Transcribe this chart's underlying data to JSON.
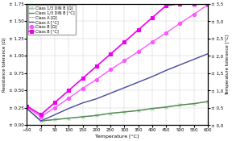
{
  "xlabel": "Temperature [°C]",
  "ylabel_left": "Resistance tolerance [Ω]",
  "ylabel_right": "Temperature tolerance [°C]",
  "xlim": [
    -50,
    600
  ],
  "ylim_left": [
    0,
    1.75
  ],
  "ylim_right": [
    0.0,
    3.5
  ],
  "x_ticks": [
    -50,
    0,
    50,
    100,
    150,
    200,
    250,
    300,
    350,
    400,
    450,
    500,
    550,
    600
  ],
  "yticks_left": [
    0.0,
    0.25,
    0.5,
    0.75,
    1.0,
    1.25,
    1.5,
    1.75
  ],
  "ytick_labels_left": [
    "± 0.00",
    "± 0.25",
    "± 0.50",
    "± 0.75",
    "± 1.00",
    "± 1.25",
    "± 1.50",
    "± 1.75"
  ],
  "yticks_right": [
    0.0,
    0.5,
    1.0,
    1.5,
    2.0,
    2.5,
    3.0,
    3.5
  ],
  "ytick_labels_right": [
    "± 0,0",
    "± 0,5",
    "± 1,0",
    "± 1,5",
    "± 2,0",
    "± 2,5",
    "± 3,0",
    "± 3,5"
  ],
  "series": [
    {
      "label": "Class 1/3 DIN B [Ω]",
      "axis": "left",
      "x": [
        -50,
        0,
        50,
        100,
        150,
        200,
        250,
        300,
        350,
        400,
        450,
        500,
        550,
        600
      ],
      "y": [
        0.24,
        0.06,
        0.08,
        0.1,
        0.12,
        0.14,
        0.17,
        0.19,
        0.21,
        0.24,
        0.26,
        0.29,
        0.31,
        0.34
      ],
      "color": "#aacfaa",
      "linestyle": "-",
      "marker": "x",
      "markersize": 3.0,
      "linewidth": 0.8
    },
    {
      "label": "Class 1/3 DIN B [°C]",
      "axis": "left",
      "x": [
        -50,
        0,
        50,
        100,
        150,
        200,
        250,
        300,
        350,
        400,
        450,
        500,
        550,
        600
      ],
      "y": [
        0.24,
        0.06,
        0.08,
        0.1,
        0.12,
        0.14,
        0.17,
        0.19,
        0.21,
        0.24,
        0.26,
        0.29,
        0.31,
        0.34
      ],
      "color": "#508850",
      "linestyle": "-",
      "marker": null,
      "markersize": 0,
      "linewidth": 1.0
    },
    {
      "label": "Class A [Ω]",
      "axis": "left",
      "x": [
        -50,
        0,
        50,
        100,
        150,
        200,
        250,
        300,
        350,
        400,
        450,
        500,
        550,
        600
      ],
      "y": [
        0.24,
        0.06,
        0.15,
        0.24,
        0.32,
        0.38,
        0.46,
        0.54,
        0.62,
        0.7,
        0.79,
        0.87,
        0.95,
        1.03
      ],
      "color": "#c0c0d8",
      "linestyle": "-",
      "marker": null,
      "markersize": 0,
      "linewidth": 0.8
    },
    {
      "label": "Class A [°C]",
      "axis": "left",
      "x": [
        -50,
        0,
        50,
        100,
        150,
        200,
        250,
        300,
        350,
        400,
        450,
        500,
        550,
        600
      ],
      "y": [
        0.24,
        0.06,
        0.15,
        0.24,
        0.32,
        0.38,
        0.46,
        0.54,
        0.62,
        0.7,
        0.79,
        0.87,
        0.95,
        1.03
      ],
      "color": "#5050a0",
      "linestyle": "-",
      "marker": null,
      "markersize": 0,
      "linewidth": 1.0
    },
    {
      "label": "Class B [Ω]",
      "axis": "left",
      "x": [
        -50,
        0,
        50,
        100,
        150,
        200,
        250,
        300,
        350,
        400,
        450,
        500,
        550,
        600
      ],
      "y": [
        0.26,
        0.12,
        0.25,
        0.39,
        0.53,
        0.66,
        0.8,
        0.93,
        1.06,
        1.2,
        1.33,
        1.47,
        1.6,
        1.74
      ],
      "color": "#ff55ff",
      "linestyle": "-",
      "marker": "o",
      "markersize": 3.0,
      "linewidth": 1.0
    },
    {
      "label": "Class B [°C]",
      "axis": "right",
      "x": [
        -50,
        0,
        50,
        100,
        150,
        200,
        250,
        300,
        350,
        400,
        450,
        500,
        550,
        600
      ],
      "y": [
        0.55,
        0.3,
        0.65,
        1.0,
        1.35,
        1.7,
        2.05,
        2.4,
        2.75,
        3.1,
        3.45,
        3.5,
        3.5,
        3.5
      ],
      "color": "#ee00ee",
      "linestyle": "-",
      "marker": "s",
      "markersize": 3.0,
      "linewidth": 1.2
    }
  ],
  "background_color": "#ffffff",
  "grid_color": "#c8c8c8"
}
